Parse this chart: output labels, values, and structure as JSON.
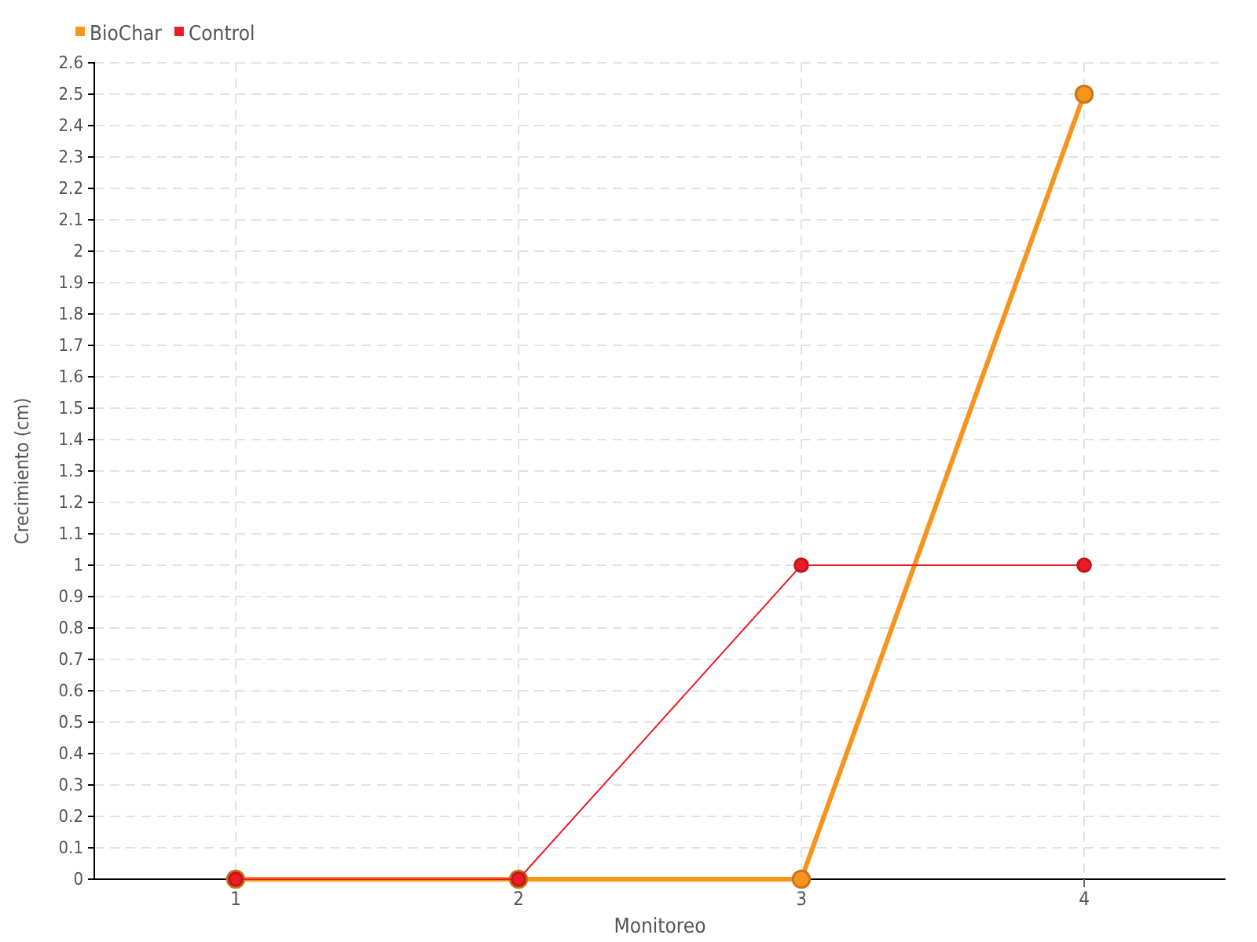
{
  "chart_data": {
    "type": "line",
    "xlabel": "Monitoreo",
    "ylabel": "Crecimiento (cm)",
    "categories": [
      "1",
      "2",
      "3",
      "4"
    ],
    "series": [
      {
        "name": "BioChar",
        "color": "#f7941d",
        "values": [
          0,
          0,
          0,
          2.5
        ]
      },
      {
        "name": "Control",
        "color": "#ed1c24",
        "values": [
          0,
          0,
          1,
          1
        ]
      }
    ],
    "ylim": [
      0,
      2.6
    ],
    "yticks": [
      0,
      0.1,
      0.2,
      0.3,
      0.4,
      0.5,
      0.6,
      0.7,
      0.8,
      0.9,
      1,
      1.1,
      1.2,
      1.3,
      1.4,
      1.5,
      1.6,
      1.7,
      1.8,
      1.9,
      2,
      2.1,
      2.2,
      2.3,
      2.4,
      2.5,
      2.6
    ],
    "grid": true,
    "legend": "top left",
    "marker": "circle",
    "line_style": "solid"
  }
}
